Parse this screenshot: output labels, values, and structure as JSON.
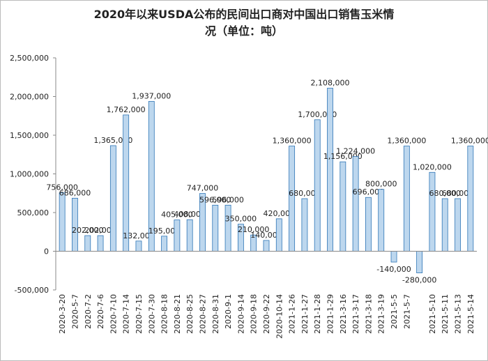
{
  "chart_data": {
    "type": "bar",
    "title": [
      "2020年以来USDA公布的民间出口商对中国出口销售玉米情",
      "况（单位：吨）"
    ],
    "categories": [
      "2020-3-20",
      "2020-5-7",
      "2020-7-2",
      "2020-7-6",
      "2020-7-10",
      "2020-7-14",
      "2020-7-15",
      "2020-7-30",
      "2020-8-18",
      "2020-8-21",
      "2020-8-25",
      "2020-8-27",
      "2020-8-31",
      "2020-9-1",
      "2020-9-14",
      "2020-9-18",
      "2020-9-22",
      "2020-10-14",
      "2021-1-26",
      "2021-1-27",
      "2021-1-28",
      "2021-1-29",
      "2021-3-16",
      "2021-3-17",
      "2021-3-18",
      "2021-3-19",
      "2021-5-5",
      "2021-5-7",
      null,
      "2021-5-10",
      "2021-5-11",
      "2021-5-13",
      "2021-5-14"
    ],
    "values": [
      756000,
      686000,
      202000,
      202000,
      1365000,
      1762000,
      132000,
      1937000,
      195000,
      405000,
      408000,
      747000,
      596000,
      596000,
      350000,
      210000,
      140000,
      420000,
      1360000,
      680000,
      1700000,
      2108000,
      1156000,
      1224000,
      696000,
      800000,
      -140000,
      1360000,
      -280000,
      1020000,
      680000,
      680000,
      1360000
    ],
    "value_labels": [
      "756,000",
      "686,000",
      "202,000",
      "202,000",
      "1,365,000",
      "1,762,000",
      "132,000",
      "1,937,000",
      "195,000",
      "405,000",
      "408,000",
      "747,000",
      "596,000",
      "596,000",
      "350,000",
      "210,000",
      "140,000",
      "420,000",
      "1,360,000",
      "680,000",
      "1,700,000",
      "2,108,000",
      "1,156,000",
      "1,224,000",
      "696,000",
      "800,000",
      "-140,000",
      "1,360,000",
      "-280,000",
      "1,020,000",
      "680,000",
      "680,000",
      "1,360,000"
    ],
    "color": "#bdd7ee",
    "ylim": [
      -500000,
      2500000
    ],
    "yticks": [
      {
        "value": -500000,
        "label": "-500,000"
      },
      0,
      {
        "value": 500000,
        "label": "500,000"
      },
      {
        "value": 1000000,
        "label": "1,000,000"
      },
      {
        "value": 1500000,
        "label": "1,500,000"
      },
      {
        "value": 2000000,
        "label": "2,000,000"
      },
      {
        "value": 2500000,
        "label": "2,500,000"
      }
    ]
  }
}
